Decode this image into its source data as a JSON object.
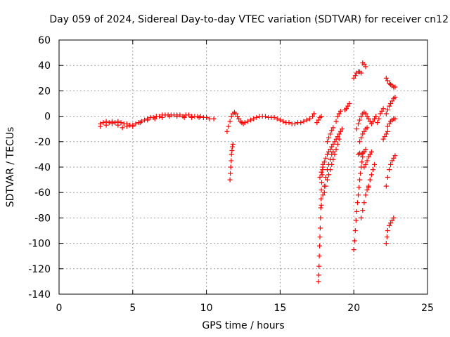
{
  "chart_data": {
    "type": "scatter",
    "title": "Day 059 of 2024, Sidereal Day-to-day VTEC variation (SDTVAR) for receiver cn12",
    "xlabel": "GPS time / hours",
    "ylabel": "SDTVAR / TECUs",
    "xlim": [
      0,
      25
    ],
    "ylim": [
      -140,
      60
    ],
    "xticks": [
      "0",
      "5",
      "10",
      "15",
      "20",
      "25"
    ],
    "yticks": [
      "60",
      "40",
      "20",
      "0",
      "-20",
      "-40",
      "-60",
      "-80",
      "-100",
      "-120",
      "-140"
    ],
    "grid": true,
    "marker": "+",
    "color": "#ff0000",
    "series": [
      {
        "points": [
          [
            2.8,
            -6
          ],
          [
            3.0,
            -5
          ],
          [
            3.2,
            -4
          ],
          [
            3.4,
            -5
          ],
          [
            3.6,
            -4
          ],
          [
            3.8,
            -5
          ],
          [
            4.0,
            -4
          ],
          [
            4.2,
            -5
          ],
          [
            4.4,
            -6
          ],
          [
            4.6,
            -6
          ],
          [
            4.8,
            -7
          ],
          [
            5.0,
            -7
          ],
          [
            5.2,
            -6
          ],
          [
            5.4,
            -5
          ],
          [
            5.6,
            -4
          ],
          [
            5.8,
            -3
          ],
          [
            6.0,
            -2
          ],
          [
            6.2,
            -1
          ],
          [
            6.4,
            -1
          ],
          [
            6.6,
            0
          ],
          [
            6.8,
            0
          ],
          [
            7.0,
            1
          ],
          [
            7.2,
            1
          ],
          [
            7.4,
            1
          ],
          [
            7.6,
            1
          ],
          [
            7.8,
            1
          ],
          [
            8.0,
            1
          ],
          [
            8.2,
            1
          ],
          [
            8.4,
            0
          ],
          [
            8.6,
            1
          ],
          [
            8.8,
            1
          ],
          [
            9.0,
            0
          ],
          [
            9.2,
            0
          ],
          [
            9.4,
            0
          ],
          [
            9.6,
            0
          ],
          [
            9.8,
            -1
          ],
          [
            10.0,
            -1
          ],
          [
            10.2,
            -2
          ],
          [
            10.5,
            -2
          ],
          [
            2.8,
            -8
          ],
          [
            3.2,
            -7
          ],
          [
            3.6,
            -6
          ],
          [
            4.0,
            -7
          ],
          [
            4.3,
            -9
          ],
          [
            4.6,
            -8
          ],
          [
            5.0,
            -8
          ],
          [
            5.5,
            -5
          ],
          [
            6.0,
            -3
          ],
          [
            6.5,
            -2
          ],
          [
            7.0,
            -1
          ],
          [
            7.5,
            0
          ],
          [
            8.0,
            0
          ],
          [
            8.5,
            -1
          ],
          [
            9.0,
            -1
          ],
          [
            9.5,
            -1
          ],
          [
            11.4,
            -12
          ],
          [
            11.5,
            -8
          ],
          [
            11.6,
            -4
          ],
          [
            11.7,
            0
          ],
          [
            11.8,
            2
          ],
          [
            11.9,
            3
          ],
          [
            12.0,
            2
          ],
          [
            12.1,
            0
          ],
          [
            12.2,
            -2
          ],
          [
            12.3,
            -4
          ],
          [
            12.4,
            -5
          ],
          [
            12.5,
            -6
          ],
          [
            12.6,
            -5
          ],
          [
            12.8,
            -4
          ],
          [
            13.0,
            -3
          ],
          [
            13.2,
            -2
          ],
          [
            13.4,
            -1
          ],
          [
            13.6,
            0
          ],
          [
            13.8,
            0
          ],
          [
            14.0,
            0
          ],
          [
            14.2,
            -1
          ],
          [
            14.4,
            -1
          ],
          [
            14.6,
            -1
          ],
          [
            14.8,
            -2
          ],
          [
            15.0,
            -3
          ],
          [
            15.2,
            -4
          ],
          [
            15.4,
            -5
          ],
          [
            15.6,
            -5
          ],
          [
            15.8,
            -6
          ],
          [
            16.0,
            -6
          ],
          [
            16.2,
            -5
          ],
          [
            16.4,
            -5
          ],
          [
            16.6,
            -4
          ],
          [
            16.8,
            -3
          ],
          [
            17.0,
            -2
          ],
          [
            17.2,
            0
          ],
          [
            17.3,
            2
          ],
          [
            11.6,
            -50
          ],
          [
            11.62,
            -45
          ],
          [
            11.65,
            -40
          ],
          [
            11.68,
            -35
          ],
          [
            11.7,
            -30
          ],
          [
            11.73,
            -27
          ],
          [
            11.76,
            -24
          ],
          [
            11.8,
            -22
          ],
          [
            17.5,
            -5
          ],
          [
            17.6,
            -3
          ],
          [
            17.7,
            -1
          ],
          [
            17.8,
            0
          ],
          [
            17.6,
            -130
          ],
          [
            17.62,
            -125
          ],
          [
            17.64,
            -118
          ],
          [
            17.66,
            -110
          ],
          [
            17.68,
            -102
          ],
          [
            17.7,
            -95
          ],
          [
            17.72,
            -88
          ],
          [
            17.74,
            -80
          ],
          [
            17.76,
            -72
          ],
          [
            17.78,
            -65
          ],
          [
            17.8,
            -58
          ],
          [
            17.82,
            -52
          ],
          [
            17.85,
            -46
          ],
          [
            17.88,
            -42
          ],
          [
            17.9,
            -38
          ],
          [
            17.8,
            -70
          ],
          [
            17.9,
            -62
          ],
          [
            18.0,
            -55
          ],
          [
            18.1,
            -48
          ],
          [
            18.2,
            -42
          ],
          [
            18.3,
            -38
          ],
          [
            18.4,
            -34
          ],
          [
            18.5,
            -30
          ],
          [
            18.6,
            -28
          ],
          [
            17.7,
            -48
          ],
          [
            17.8,
            -44
          ],
          [
            17.9,
            -40
          ],
          [
            18.0,
            -36
          ],
          [
            18.1,
            -33
          ],
          [
            18.2,
            -30
          ],
          [
            18.3,
            -28
          ],
          [
            18.4,
            -26
          ],
          [
            18.5,
            -24
          ],
          [
            18.6,
            -22
          ],
          [
            18.7,
            -20
          ],
          [
            18.8,
            -18
          ],
          [
            18.9,
            -16
          ],
          [
            19.0,
            -14
          ],
          [
            19.1,
            -12
          ],
          [
            19.2,
            -10
          ],
          [
            18.0,
            -60
          ],
          [
            18.1,
            -55
          ],
          [
            18.2,
            -50
          ],
          [
            18.3,
            -46
          ],
          [
            18.4,
            -42
          ],
          [
            18.5,
            -38
          ],
          [
            18.6,
            -34
          ],
          [
            18.7,
            -30
          ],
          [
            18.8,
            -26
          ],
          [
            18.9,
            -22
          ],
          [
            19.0,
            -18
          ],
          [
            18.2,
            -20
          ],
          [
            18.3,
            -17
          ],
          [
            18.4,
            -14
          ],
          [
            18.5,
            -11
          ],
          [
            18.6,
            -9
          ],
          [
            18.8,
            -4
          ],
          [
            18.9,
            0
          ],
          [
            19.0,
            2
          ],
          [
            19.1,
            4
          ],
          [
            19.4,
            5
          ],
          [
            19.5,
            6
          ],
          [
            19.6,
            8
          ],
          [
            19.7,
            10
          ],
          [
            20.0,
            -105
          ],
          [
            20.05,
            -98
          ],
          [
            20.1,
            -90
          ],
          [
            20.15,
            -82
          ],
          [
            20.2,
            -75
          ],
          [
            20.25,
            -68
          ],
          [
            20.3,
            -62
          ],
          [
            20.35,
            -56
          ],
          [
            20.4,
            -50
          ],
          [
            20.45,
            -45
          ],
          [
            20.5,
            -40
          ],
          [
            20.55,
            -36
          ],
          [
            20.6,
            -32
          ],
          [
            20.7,
            -28
          ],
          [
            20.8,
            -26
          ],
          [
            20.0,
            30
          ],
          [
            20.1,
            32
          ],
          [
            20.2,
            34
          ],
          [
            20.3,
            35
          ],
          [
            20.4,
            35
          ],
          [
            20.5,
            34
          ],
          [
            20.6,
            42
          ],
          [
            20.7,
            41
          ],
          [
            20.8,
            39
          ],
          [
            20.2,
            -10
          ],
          [
            20.3,
            -6
          ],
          [
            20.4,
            -3
          ],
          [
            20.5,
            0
          ],
          [
            20.6,
            2
          ],
          [
            20.7,
            3
          ],
          [
            20.8,
            2
          ],
          [
            20.9,
            0
          ],
          [
            21.0,
            -2
          ],
          [
            21.1,
            -4
          ],
          [
            21.2,
            -6
          ],
          [
            21.3,
            -4
          ],
          [
            21.4,
            -2
          ],
          [
            21.5,
            0
          ],
          [
            20.4,
            -20
          ],
          [
            20.5,
            -17
          ],
          [
            20.6,
            -14
          ],
          [
            20.7,
            -12
          ],
          [
            20.8,
            -10
          ],
          [
            20.9,
            -9
          ],
          [
            20.3,
            -30
          ],
          [
            20.4,
            -29
          ],
          [
            20.5,
            -30
          ],
          [
            20.6,
            -29
          ],
          [
            20.7,
            -28
          ],
          [
            20.5,
            -80
          ],
          [
            20.6,
            -74
          ],
          [
            20.7,
            -68
          ],
          [
            20.8,
            -62
          ],
          [
            20.9,
            -58
          ],
          [
            21.0,
            -56
          ],
          [
            20.7,
            -40
          ],
          [
            20.8,
            -38
          ],
          [
            20.9,
            -35
          ],
          [
            21.0,
            -32
          ],
          [
            21.1,
            -30
          ],
          [
            21.2,
            -28
          ],
          [
            21.0,
            -55
          ],
          [
            21.1,
            -50
          ],
          [
            21.2,
            -46
          ],
          [
            21.3,
            -42
          ],
          [
            21.4,
            -38
          ],
          [
            21.6,
            -5
          ],
          [
            21.7,
            -2
          ],
          [
            21.8,
            2
          ],
          [
            21.9,
            4
          ],
          [
            22.0,
            6
          ],
          [
            22.2,
            -100
          ],
          [
            22.25,
            -95
          ],
          [
            22.3,
            -90
          ],
          [
            22.4,
            -86
          ],
          [
            22.5,
            -84
          ],
          [
            22.6,
            -82
          ],
          [
            22.7,
            -80
          ],
          [
            22.2,
            -55
          ],
          [
            22.3,
            -48
          ],
          [
            22.4,
            -42
          ],
          [
            22.5,
            -38
          ],
          [
            22.6,
            -35
          ],
          [
            22.7,
            -33
          ],
          [
            22.8,
            -31
          ],
          [
            22.2,
            30
          ],
          [
            22.3,
            28
          ],
          [
            22.4,
            26
          ],
          [
            22.5,
            25
          ],
          [
            22.6,
            24
          ],
          [
            22.7,
            23
          ],
          [
            22.8,
            23
          ],
          [
            22.2,
            2
          ],
          [
            22.3,
            5
          ],
          [
            22.4,
            8
          ],
          [
            22.5,
            10
          ],
          [
            22.6,
            12
          ],
          [
            22.7,
            14
          ],
          [
            22.8,
            15
          ],
          [
            22.3,
            -8
          ],
          [
            22.4,
            -6
          ],
          [
            22.5,
            -4
          ],
          [
            22.6,
            -3
          ],
          [
            22.7,
            -2
          ],
          [
            22.8,
            -2
          ],
          [
            22.0,
            -18
          ],
          [
            22.1,
            -16
          ],
          [
            22.2,
            -14
          ],
          [
            22.3,
            -12
          ]
        ]
      }
    ]
  }
}
